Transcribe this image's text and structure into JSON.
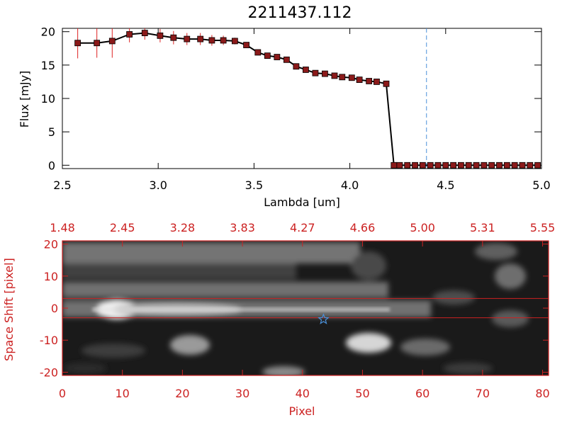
{
  "chart_data": [
    {
      "type": "line",
      "title": "2211437.112",
      "xlabel": "Lambda [um]",
      "ylabel": "Flux [mJy]",
      "xlim": [
        2.5,
        5.0
      ],
      "ylim": [
        -0.5,
        20.5
      ],
      "xticks": [
        2.5,
        3.0,
        3.5,
        4.0,
        4.5,
        5.0
      ],
      "xtick_labels": [
        "2.5",
        "3.0",
        "3.5",
        "4.0",
        "4.5",
        "5.0"
      ],
      "yticks": [
        0,
        5,
        10,
        15,
        20
      ],
      "ytick_labels": [
        "0",
        "5",
        "10",
        "15",
        "20"
      ],
      "marker": "square",
      "line_color": "#000000",
      "marker_color": "#8b1a1a",
      "errorbar_color": "#dd2222",
      "vline": {
        "x": 4.4,
        "color": "#4a90d9",
        "style": "dashed"
      },
      "series": [
        {
          "x": [
            2.58,
            2.68,
            2.76,
            2.85,
            2.93,
            3.01,
            3.08,
            3.15,
            3.22,
            3.28,
            3.34,
            3.4,
            3.46,
            3.52,
            3.57,
            3.62,
            3.67,
            3.72,
            3.77,
            3.82,
            3.87,
            3.92,
            3.96,
            4.01,
            4.05,
            4.1,
            4.14,
            4.19,
            4.23,
            4.26,
            4.3,
            4.34,
            4.38,
            4.42,
            4.46,
            4.5,
            4.54,
            4.58,
            4.62,
            4.66,
            4.7,
            4.74,
            4.78,
            4.82,
            4.86,
            4.9,
            4.94,
            4.98
          ],
          "y": [
            18.3,
            18.3,
            18.6,
            19.6,
            19.8,
            19.4,
            19.1,
            18.9,
            18.9,
            18.7,
            18.7,
            18.6,
            18.0,
            16.9,
            16.4,
            16.2,
            15.8,
            14.8,
            14.3,
            13.8,
            13.7,
            13.4,
            13.2,
            13.1,
            12.8,
            12.6,
            12.5,
            12.2,
            0.0,
            0.0,
            0.0,
            0.0,
            0.0,
            0.0,
            0.0,
            0.0,
            0.0,
            0.0,
            0.0,
            0.0,
            0.0,
            0.0,
            0.0,
            0.0,
            0.0,
            0.0,
            0.0,
            0.0
          ],
          "err": [
            2.3,
            2.2,
            2.5,
            1.2,
            1.0,
            1.0,
            1.0,
            0.9,
            0.9,
            0.8,
            0.7,
            0.5,
            0.3,
            0.2,
            0.2,
            0.2,
            0.2,
            0.2,
            0.2,
            0.2,
            0.2,
            0.2,
            0.2,
            0.2,
            0.2,
            0.2,
            0.2,
            0.3,
            0.3,
            0.1,
            0.1,
            0.1,
            0.1,
            0.1,
            0.1,
            0.1,
            0.1,
            0.1,
            0.1,
            0.1,
            0.1,
            0.1,
            0.1,
            0.1,
            0.1,
            0.1,
            0.1,
            0.1
          ]
        }
      ]
    },
    {
      "type": "heatmap",
      "xlabel": "Pixel",
      "ylabel": "Space Shift [pixel]",
      "xlim": [
        0,
        81
      ],
      "ylim": [
        -21,
        21
      ],
      "xticks": [
        0,
        10,
        20,
        30,
        40,
        50,
        60,
        70,
        80
      ],
      "xtick_labels": [
        "0",
        "10",
        "20",
        "30",
        "40",
        "50",
        "60",
        "70",
        "80"
      ],
      "yticks": [
        -20,
        -10,
        0,
        10,
        20
      ],
      "ytick_labels": [
        "-20",
        "-10",
        "0",
        "10",
        "20"
      ],
      "top_axis_labels": [
        "1.48",
        "2.45",
        "3.28",
        "3.83",
        "4.27",
        "4.66",
        "5.00",
        "5.31",
        "5.55"
      ],
      "extraction_window": [
        -3,
        3
      ],
      "marker": {
        "x": 43.5,
        "y": -3.5,
        "shape": "star",
        "color": "#4a90d9"
      },
      "colormap": "grayscale",
      "axis_color": "#cc2222"
    }
  ]
}
